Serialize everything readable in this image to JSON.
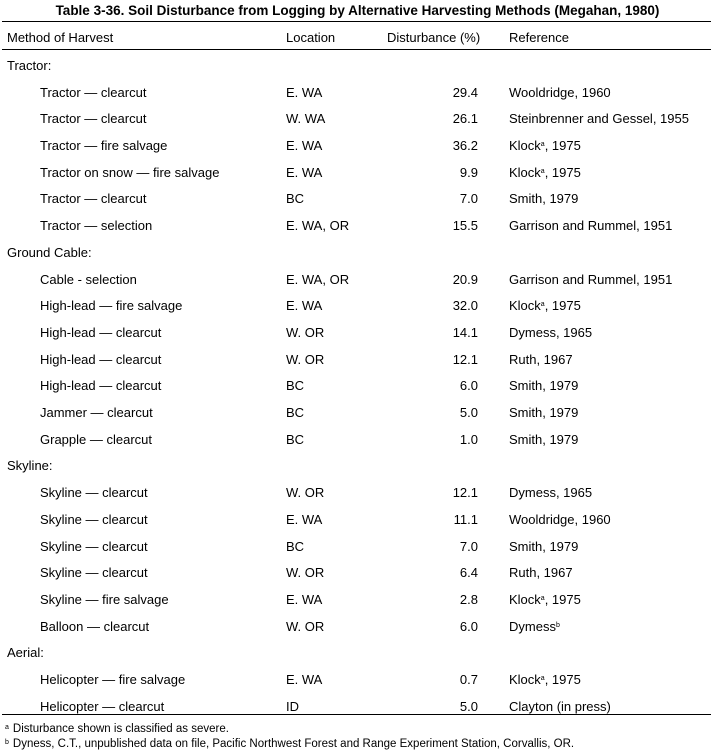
{
  "title": "Table 3-36.  Soil Disturbance from Logging by Alternative Harvesting Methods (Megahan, 1980)",
  "columns": {
    "method": "Method of Harvest",
    "location": "Location",
    "disturbance": "Disturbance (%)",
    "reference": "Reference"
  },
  "groups": [
    {
      "name": "Tractor:",
      "rows": [
        {
          "method": "Tractor — clearcut",
          "location": "E. WA",
          "disturbance": "29.4",
          "reference": "Wooldridge, 1960",
          "note": ""
        },
        {
          "method": "Tractor — clearcut",
          "location": "W. WA",
          "disturbance": "26.1",
          "reference": "Steinbrenner and Gessel, 1955",
          "note": ""
        },
        {
          "method": "Tractor — fire salvage",
          "location": "E. WA",
          "disturbance": "36.2",
          "reference": "Klock",
          "note": "a",
          "year": ", 1975"
        },
        {
          "method": "Tractor on snow — fire salvage",
          "location": "E. WA",
          "disturbance": "9.9",
          "reference": "Klock",
          "note": "a",
          "year": ", 1975"
        },
        {
          "method": "Tractor — clearcut",
          "location": "BC",
          "disturbance": "7.0",
          "reference": "Smith, 1979",
          "note": ""
        },
        {
          "method": "Tractor — selection",
          "location": "E. WA, OR",
          "disturbance": "15.5",
          "reference": "Garrison and Rummel, 1951",
          "note": ""
        }
      ]
    },
    {
      "name": "Ground Cable:",
      "rows": [
        {
          "method": "Cable - selection",
          "location": "E. WA, OR",
          "disturbance": "20.9",
          "reference": "Garrison and Rummel, 1951",
          "note": ""
        },
        {
          "method": "High-lead — fire salvage",
          "location": "E. WA",
          "disturbance": "32.0",
          "reference": "Klock",
          "note": "a",
          "year": ", 1975"
        },
        {
          "method": "High-lead — clearcut",
          "location": "W. OR",
          "disturbance": "14.1",
          "reference": "Dymess, 1965",
          "note": ""
        },
        {
          "method": "High-lead — clearcut",
          "location": "W. OR",
          "disturbance": "12.1",
          "reference": "Ruth, 1967",
          "note": ""
        },
        {
          "method": "High-lead — clearcut",
          "location": "BC",
          "disturbance": "6.0",
          "reference": "Smith, 1979",
          "note": ""
        },
        {
          "method": "Jammer — clearcut",
          "location": "BC",
          "disturbance": "5.0",
          "reference": "Smith, 1979",
          "note": ""
        },
        {
          "method": "Grapple — clearcut",
          "location": "BC",
          "disturbance": "1.0",
          "reference": "Smith, 1979",
          "note": ""
        }
      ]
    },
    {
      "name": "Skyline:",
      "rows": [
        {
          "method": "Skyline — clearcut",
          "location": "W. OR",
          "disturbance": "12.1",
          "reference": "Dymess, 1965",
          "note": ""
        },
        {
          "method": "Skyline — clearcut",
          "location": "E. WA",
          "disturbance": "11.1",
          "reference": "Wooldridge, 1960",
          "note": ""
        },
        {
          "method": "Skyline — clearcut",
          "location": "BC",
          "disturbance": "7.0",
          "reference": "Smith, 1979",
          "note": ""
        },
        {
          "method": "Skyline — clearcut",
          "location": "W. OR",
          "disturbance": "6.4",
          "reference": "Ruth, 1967",
          "note": ""
        },
        {
          "method": "Skyline — fire salvage",
          "location": "E. WA",
          "disturbance": "2.8",
          "reference": "Klock",
          "note": "a",
          "year": ", 1975"
        },
        {
          "method": "Balloon — clearcut",
          "location": "W. OR",
          "disturbance": "6.0",
          "reference": "Dymess",
          "note": "b",
          "year": ""
        }
      ]
    },
    {
      "name": "Aerial:",
      "rows": [
        {
          "method": "Helicopter — fire salvage",
          "location": "E. WA",
          "disturbance": "0.7",
          "reference": "Klock",
          "note": "a",
          "year": ", 1975"
        },
        {
          "method": "Helicopter — clearcut",
          "location": "ID",
          "disturbance": "5.0",
          "reference": "Clayton (in press)",
          "note": ""
        }
      ]
    }
  ],
  "footnotes": [
    {
      "mark": "a",
      "text": "Disturbance shown is classified as severe."
    },
    {
      "mark": "b",
      "text": "Dyness, C.T., unpublished data on file, Pacific Northwest Forest and Range Experiment Station, Corvallis, OR."
    }
  ]
}
